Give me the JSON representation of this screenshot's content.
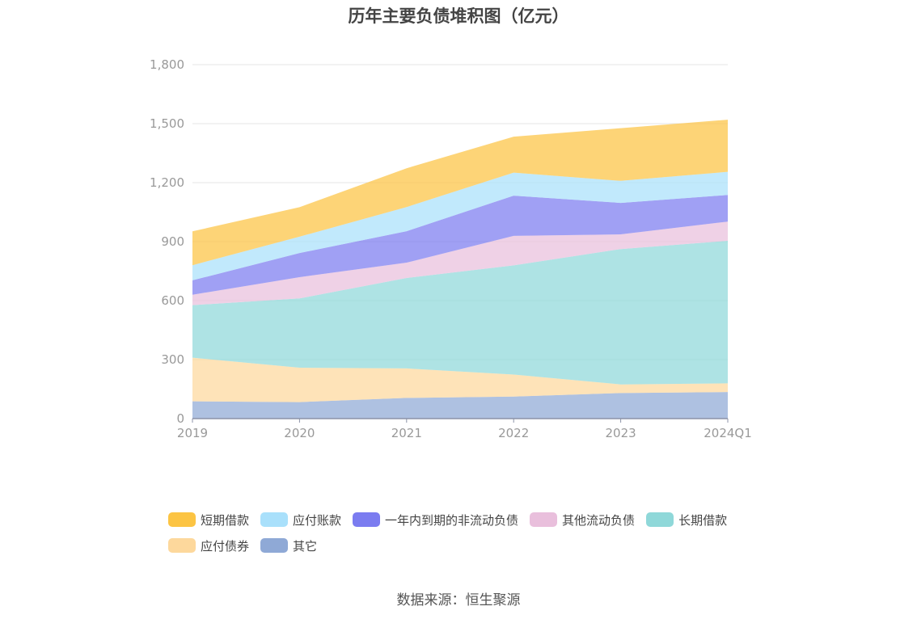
{
  "chart_data": {
    "type": "area",
    "stacked": true,
    "title": "历年主要负债堆积图（亿元）",
    "categories": [
      "2019",
      "2020",
      "2021",
      "2022",
      "2023",
      "2024Q1"
    ],
    "ylim": [
      0,
      1800
    ],
    "yticks": [
      0,
      300,
      600,
      900,
      1200,
      1500,
      1800
    ],
    "ytick_labels": [
      "0",
      "300",
      "600",
      "900",
      "1,200",
      "1,500",
      "1,800"
    ],
    "grid": true,
    "legend_position": "bottom",
    "series": [
      {
        "name": "其它",
        "color": "#8fa9d6",
        "values": [
          88,
          84,
          105,
          112,
          130,
          135
        ]
      },
      {
        "name": "应付债券",
        "color": "#fdd89c",
        "values": [
          222,
          175,
          150,
          112,
          44,
          44
        ]
      },
      {
        "name": "长期借款",
        "color": "#8fd8d9",
        "values": [
          267,
          352,
          460,
          555,
          688,
          725
        ]
      },
      {
        "name": "其他流动负债",
        "color": "#e9bfdc",
        "values": [
          53,
          108,
          78,
          150,
          75,
          98
        ]
      },
      {
        "name": "一年内到期的非流动负债",
        "color": "#7b7cf0",
        "values": [
          73,
          123,
          160,
          205,
          160,
          135
        ]
      },
      {
        "name": "应付账款",
        "color": "#a9e0fb",
        "values": [
          77,
          83,
          123,
          117,
          112,
          118
        ]
      },
      {
        "name": "短期借款",
        "color": "#fcc443",
        "values": [
          172,
          150,
          197,
          183,
          268,
          265
        ]
      }
    ]
  },
  "legend_order": [
    "短期借款",
    "应付账款",
    "一年内到期的非流动负债",
    "其他流动负债",
    "长期借款",
    "应付债券",
    "其它"
  ],
  "source": "数据来源：恒生聚源"
}
